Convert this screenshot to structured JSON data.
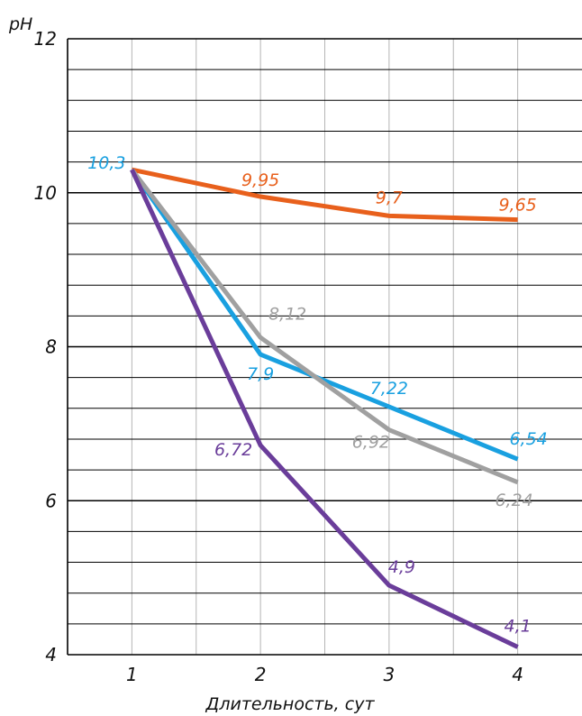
{
  "chart_data": {
    "type": "line",
    "title": "",
    "ylabel": "pH",
    "xlabel": "Длительность, сут",
    "x": [
      1,
      2,
      3,
      4
    ],
    "xlim": [
      0.5,
      4.5
    ],
    "ylim": [
      4,
      12
    ],
    "yticks": [
      4,
      6,
      8,
      10,
      12
    ],
    "grid": true,
    "legend": "none",
    "series": [
      {
        "color": "#e8601c",
        "values": [
          10.3,
          9.95,
          9.7,
          9.65
        ],
        "labels": [
          "",
          "9,95",
          "9,7",
          "9,65"
        ]
      },
      {
        "color": "#19a0e0",
        "values": [
          10.3,
          7.9,
          7.22,
          6.54
        ],
        "labels": [
          "10,3",
          "7,9",
          "7,22",
          "6,54"
        ]
      },
      {
        "color": "#a0a0a0",
        "values": [
          10.3,
          8.12,
          6.92,
          6.24
        ],
        "labels": [
          "",
          "8,12",
          "6,92",
          "6,24"
        ]
      },
      {
        "color": "#6a3d9a",
        "values": [
          10.3,
          6.72,
          4.9,
          4.1
        ],
        "labels": [
          "",
          "6,72",
          "4,9",
          "4,1"
        ]
      }
    ]
  }
}
